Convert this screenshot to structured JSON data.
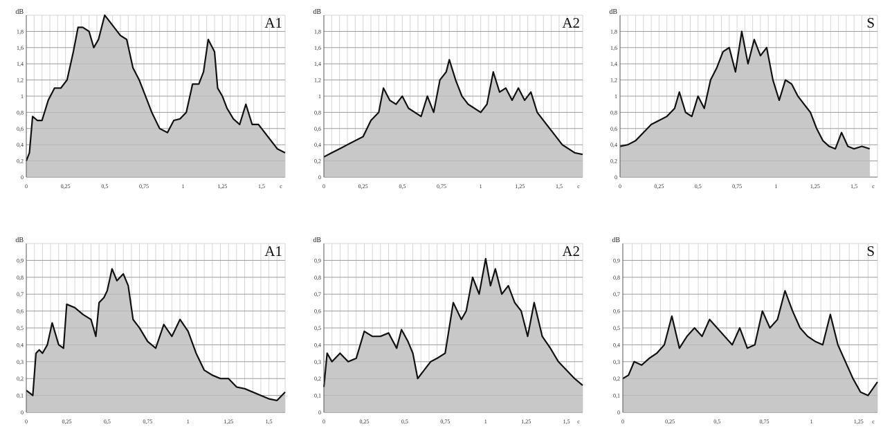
{
  "colors": {
    "area": "#c8c8c8",
    "line": "#111111",
    "grid_major": "#a0a0a0",
    "grid_minor": "#d6d6d6",
    "background": "#ffffff"
  },
  "chart_data": [
    {
      "type": "area",
      "title": "A1",
      "ylabel": "dB",
      "xlim": [
        0,
        1.65
      ],
      "ylim": [
        0,
        2
      ],
      "xticks": [
        0,
        0.25,
        0.5,
        0.75,
        1,
        1.25,
        1.5
      ],
      "xtick_labels": [
        "0",
        "0,25",
        "0,5",
        "0,75",
        "1",
        "1,25",
        "1,5"
      ],
      "xunit_label": "c",
      "yticks": [
        0,
        0.2,
        0.4,
        0.6,
        0.8,
        1,
        1.2,
        1.4,
        1.6,
        1.8
      ],
      "ytick_labels": [
        "0",
        "0,2",
        "0,4",
        "0,6",
        "0,8",
        "1",
        "1,2",
        "1,4",
        "1,6",
        "1,8"
      ],
      "x": [
        0,
        0.02,
        0.04,
        0.07,
        0.1,
        0.14,
        0.18,
        0.22,
        0.26,
        0.3,
        0.33,
        0.36,
        0.4,
        0.43,
        0.46,
        0.5,
        0.52,
        0.56,
        0.6,
        0.64,
        0.68,
        0.72,
        0.76,
        0.8,
        0.85,
        0.9,
        0.94,
        0.98,
        1.02,
        1.06,
        1.1,
        1.13,
        1.16,
        1.2,
        1.22,
        1.25,
        1.28,
        1.32,
        1.36,
        1.4,
        1.44,
        1.48,
        1.52,
        1.56,
        1.6,
        1.65
      ],
      "y": [
        0.2,
        0.3,
        0.75,
        0.7,
        0.7,
        0.95,
        1.1,
        1.1,
        1.2,
        1.55,
        1.85,
        1.85,
        1.8,
        1.6,
        1.7,
        2.0,
        1.95,
        1.85,
        1.75,
        1.7,
        1.35,
        1.2,
        1.0,
        0.8,
        0.6,
        0.55,
        0.7,
        0.72,
        0.8,
        1.15,
        1.15,
        1.3,
        1.7,
        1.55,
        1.1,
        1.0,
        0.85,
        0.72,
        0.65,
        0.9,
        0.65,
        0.65,
        0.55,
        0.45,
        0.35,
        0.3
      ]
    },
    {
      "type": "area",
      "title": "A2",
      "ylabel": "dB",
      "xlim": [
        0,
        1.65
      ],
      "ylim": [
        0,
        2
      ],
      "xticks": [
        0,
        0.25,
        0.5,
        0.75,
        1,
        1.25,
        1.5
      ],
      "xtick_labels": [
        "0",
        "0,25",
        "0,5",
        "0,75",
        "1",
        "1,25",
        "1,5"
      ],
      "xunit_label": "c",
      "yticks": [
        0,
        0.2,
        0.4,
        0.6,
        0.8,
        1,
        1.2,
        1.4,
        1.6,
        1.8
      ],
      "ytick_labels": [
        "0",
        "0,2",
        "0,4",
        "0,6",
        "0,8",
        "1",
        "1,2",
        "1,4",
        "1,6",
        "1,8"
      ],
      "x": [
        0,
        0.05,
        0.1,
        0.15,
        0.2,
        0.25,
        0.3,
        0.35,
        0.38,
        0.42,
        0.46,
        0.5,
        0.54,
        0.58,
        0.62,
        0.66,
        0.7,
        0.74,
        0.78,
        0.8,
        0.84,
        0.88,
        0.92,
        0.96,
        1.0,
        1.04,
        1.08,
        1.12,
        1.16,
        1.2,
        1.24,
        1.28,
        1.32,
        1.36,
        1.4,
        1.44,
        1.48,
        1.52,
        1.56,
        1.6,
        1.65
      ],
      "y": [
        0.25,
        0.3,
        0.35,
        0.4,
        0.45,
        0.5,
        0.7,
        0.8,
        1.1,
        0.95,
        0.9,
        1.0,
        0.85,
        0.8,
        0.75,
        1.0,
        0.8,
        1.2,
        1.3,
        1.45,
        1.2,
        1.0,
        0.9,
        0.85,
        0.8,
        0.9,
        1.3,
        1.05,
        1.1,
        0.95,
        1.1,
        0.95,
        1.05,
        0.8,
        0.7,
        0.6,
        0.5,
        0.4,
        0.35,
        0.3,
        0.28
      ]
    },
    {
      "type": "area",
      "title": "S",
      "ylabel": "dB",
      "xlim": [
        0,
        1.65
      ],
      "ylim": [
        0,
        2
      ],
      "xticks": [
        0,
        0.25,
        0.5,
        0.75,
        1,
        1.25,
        1.5
      ],
      "xtick_labels": [
        "0",
        "0,25",
        "0,5",
        "0,75",
        "1",
        "1,25",
        "1,5"
      ],
      "xunit_label": "c",
      "yticks": [
        0,
        0.2,
        0.4,
        0.6,
        0.8,
        1,
        1.2,
        1.4,
        1.6,
        1.8
      ],
      "ytick_labels": [
        "0",
        "0,2",
        "0,4",
        "0,6",
        "0,8",
        "1",
        "1,2",
        "1,4",
        "1,6",
        "1,8"
      ],
      "x": [
        0,
        0.05,
        0.1,
        0.15,
        0.2,
        0.25,
        0.3,
        0.35,
        0.38,
        0.42,
        0.46,
        0.5,
        0.54,
        0.58,
        0.62,
        0.66,
        0.7,
        0.74,
        0.78,
        0.82,
        0.86,
        0.9,
        0.94,
        0.98,
        1.02,
        1.06,
        1.1,
        1.14,
        1.18,
        1.22,
        1.26,
        1.3,
        1.34,
        1.38,
        1.42,
        1.46,
        1.5,
        1.55,
        1.6
      ],
      "y": [
        0.38,
        0.4,
        0.45,
        0.55,
        0.65,
        0.7,
        0.75,
        0.85,
        1.05,
        0.8,
        0.75,
        1.0,
        0.85,
        1.2,
        1.35,
        1.55,
        1.6,
        1.3,
        1.8,
        1.4,
        1.7,
        1.5,
        1.6,
        1.2,
        0.95,
        1.2,
        1.15,
        1.0,
        0.9,
        0.8,
        0.6,
        0.45,
        0.38,
        0.35,
        0.55,
        0.38,
        0.35,
        0.38,
        0.35
      ]
    },
    {
      "type": "area",
      "title": "A1",
      "ylabel": "dB",
      "xlim": [
        0,
        1.6
      ],
      "ylim": [
        0,
        1
      ],
      "xticks": [
        0,
        0.25,
        0.5,
        0.75,
        1,
        1.25,
        1.5
      ],
      "xtick_labels": [
        "0",
        "0,25",
        "0,5",
        "0,75",
        "1",
        "1,25",
        "1,5"
      ],
      "xunit_label": "",
      "yticks": [
        0,
        0.1,
        0.2,
        0.3,
        0.4,
        0.5,
        0.6,
        0.7,
        0.8,
        0.9
      ],
      "ytick_labels": [
        "0",
        "0,1",
        "0,2",
        "0,3",
        "0,4",
        "0,5",
        "0,6",
        "0,7",
        "0,8",
        "0,9"
      ],
      "x": [
        0,
        0.04,
        0.06,
        0.08,
        0.1,
        0.13,
        0.16,
        0.2,
        0.23,
        0.25,
        0.3,
        0.35,
        0.4,
        0.43,
        0.45,
        0.48,
        0.5,
        0.53,
        0.56,
        0.6,
        0.63,
        0.66,
        0.7,
        0.75,
        0.8,
        0.85,
        0.9,
        0.95,
        1.0,
        1.05,
        1.1,
        1.15,
        1.2,
        1.25,
        1.3,
        1.35,
        1.4,
        1.45,
        1.5,
        1.55,
        1.6
      ],
      "y": [
        0.13,
        0.1,
        0.35,
        0.37,
        0.35,
        0.4,
        0.53,
        0.4,
        0.38,
        0.64,
        0.62,
        0.58,
        0.55,
        0.45,
        0.65,
        0.68,
        0.72,
        0.85,
        0.78,
        0.82,
        0.75,
        0.55,
        0.5,
        0.42,
        0.38,
        0.52,
        0.45,
        0.55,
        0.48,
        0.35,
        0.25,
        0.22,
        0.2,
        0.2,
        0.15,
        0.14,
        0.12,
        0.1,
        0.08,
        0.07,
        0.12
      ]
    },
    {
      "type": "area",
      "title": "A2",
      "ylabel": "dB",
      "xlim": [
        0,
        1.6
      ],
      "ylim": [
        0,
        1
      ],
      "xticks": [
        0,
        0.25,
        0.5,
        0.75,
        1,
        1.25,
        1.5
      ],
      "xtick_labels": [
        "0",
        "0,25",
        "0,5",
        "0,75",
        "1",
        "1,25",
        "1,5"
      ],
      "xunit_label": "c",
      "yticks": [
        0,
        0.1,
        0.2,
        0.3,
        0.4,
        0.5,
        0.6,
        0.7,
        0.8,
        0.9
      ],
      "ytick_labels": [
        "0",
        "0,1",
        "0,2",
        "0,3",
        "0,4",
        "0,5",
        "0,6",
        "0,7",
        "0,8",
        "0,9"
      ],
      "x": [
        0,
        0.02,
        0.05,
        0.1,
        0.15,
        0.2,
        0.25,
        0.3,
        0.35,
        0.4,
        0.45,
        0.48,
        0.52,
        0.55,
        0.58,
        0.62,
        0.66,
        0.7,
        0.75,
        0.8,
        0.85,
        0.88,
        0.92,
        0.96,
        1.0,
        1.03,
        1.06,
        1.1,
        1.14,
        1.18,
        1.22,
        1.26,
        1.3,
        1.35,
        1.4,
        1.45,
        1.5,
        1.55,
        1.6
      ],
      "y": [
        0.15,
        0.35,
        0.3,
        0.35,
        0.3,
        0.32,
        0.48,
        0.45,
        0.45,
        0.47,
        0.38,
        0.49,
        0.42,
        0.35,
        0.2,
        0.25,
        0.3,
        0.32,
        0.35,
        0.65,
        0.55,
        0.6,
        0.8,
        0.7,
        0.91,
        0.75,
        0.85,
        0.7,
        0.75,
        0.65,
        0.6,
        0.45,
        0.65,
        0.45,
        0.38,
        0.3,
        0.25,
        0.2,
        0.16
      ]
    },
    {
      "type": "area",
      "title": "S",
      "ylabel": "dB",
      "xlim": [
        0,
        1.35
      ],
      "ylim": [
        0,
        1
      ],
      "xticks": [
        0,
        0.25,
        0.5,
        0.75,
        1,
        1.25
      ],
      "xtick_labels": [
        "0",
        "0,25",
        "0,5",
        "0,75",
        "1",
        "1,25"
      ],
      "xunit_label": "c",
      "yticks": [
        0,
        0.1,
        0.2,
        0.3,
        0.4,
        0.5,
        0.6,
        0.7,
        0.8,
        0.9
      ],
      "ytick_labels": [
        "0",
        "0,1",
        "0,2",
        "0,3",
        "0,4",
        "0,5",
        "0,6",
        "0,7",
        "0,8",
        "0,9"
      ],
      "x": [
        0,
        0.03,
        0.06,
        0.1,
        0.14,
        0.18,
        0.22,
        0.26,
        0.3,
        0.34,
        0.38,
        0.42,
        0.46,
        0.5,
        0.54,
        0.58,
        0.62,
        0.66,
        0.7,
        0.74,
        0.78,
        0.82,
        0.86,
        0.9,
        0.94,
        0.98,
        1.02,
        1.06,
        1.1,
        1.14,
        1.18,
        1.22,
        1.26,
        1.3,
        1.35
      ],
      "y": [
        0.2,
        0.22,
        0.3,
        0.28,
        0.32,
        0.35,
        0.4,
        0.57,
        0.38,
        0.45,
        0.5,
        0.45,
        0.55,
        0.5,
        0.45,
        0.4,
        0.5,
        0.38,
        0.4,
        0.6,
        0.5,
        0.55,
        0.72,
        0.6,
        0.5,
        0.45,
        0.42,
        0.4,
        0.58,
        0.4,
        0.3,
        0.2,
        0.12,
        0.1,
        0.18
      ]
    }
  ]
}
